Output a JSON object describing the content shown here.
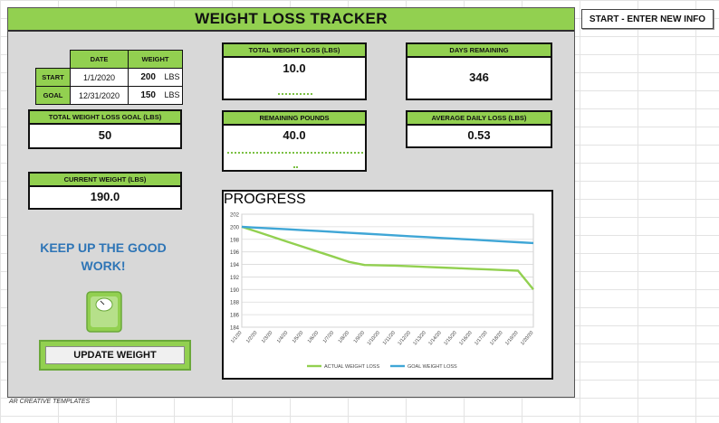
{
  "header": {
    "title": "WEIGHT LOSS TRACKER"
  },
  "start_button": {
    "label": "START - ENTER NEW INFO"
  },
  "summary_table": {
    "col_date": "DATE",
    "col_weight": "WEIGHT",
    "rows": [
      {
        "label": "START",
        "date": "1/1/2020",
        "weight": "200",
        "unit": "LBS"
      },
      {
        "label": "GOAL",
        "date": "12/31/2020",
        "weight": "150",
        "unit": "LBS"
      }
    ]
  },
  "cards": {
    "total_loss": {
      "label": "TOTAL WEIGHT LOSS (LBS)",
      "value": "10.0"
    },
    "days_remaining": {
      "label": "DAYS REMAINING",
      "value": "346"
    },
    "goal_loss": {
      "label": "TOTAL WEIGHT LOSS GOAL (LBS)",
      "value": "50"
    },
    "remaining_pounds": {
      "label": "REMAINING POUNDS",
      "value": "40.0"
    },
    "avg_daily": {
      "label": "AVERAGE DAILY LOSS (LBS)",
      "value": "0.53"
    },
    "current_weight": {
      "label": "CURRENT WEIGHT (LBS)",
      "value": "190.0"
    }
  },
  "motivation": {
    "text": "KEEP UP THE GOOD WORK!"
  },
  "update_button": {
    "label": "UPDATE WEIGHT"
  },
  "footer": {
    "text": "AR CREATIVE TEMPLATES"
  },
  "icons": {
    "scale": "scale-icon"
  },
  "colors": {
    "accent_green": "#92d050",
    "actual_line": "#92d050",
    "goal_line": "#3fa6d6",
    "motivation_blue": "#2e75b6"
  },
  "chart_data": {
    "type": "line",
    "title": "PROGRESS",
    "x": [
      "1/1/20",
      "1/2/20",
      "1/3/20",
      "1/4/20",
      "1/5/20",
      "1/6/20",
      "1/7/20",
      "1/8/20",
      "1/9/20",
      "1/10/20",
      "1/11/20",
      "1/12/20",
      "1/13/20",
      "1/14/20",
      "1/15/20",
      "1/16/20",
      "1/17/20",
      "1/18/20",
      "1/19/20",
      "1/20/20"
    ],
    "ylim": [
      184,
      202
    ],
    "yticks": [
      184,
      186,
      188,
      190,
      192,
      194,
      196,
      198,
      200,
      202
    ],
    "series": [
      {
        "name": "ACTUAL WEIGHT LOSS",
        "color": "#92d050",
        "values": [
          200,
          199.2,
          198.4,
          197.6,
          196.8,
          196.0,
          195.2,
          194.4,
          193.9,
          193.85,
          193.8,
          193.7,
          193.6,
          193.5,
          193.4,
          193.3,
          193.2,
          193.1,
          193.0,
          190.0
        ]
      },
      {
        "name": "GOAL WEIGHT LOSS",
        "color": "#3fa6d6",
        "values": [
          200,
          199.86,
          199.73,
          199.59,
          199.45,
          199.32,
          199.18,
          199.04,
          198.9,
          198.77,
          198.63,
          198.49,
          198.36,
          198.22,
          198.08,
          197.95,
          197.81,
          197.67,
          197.53,
          197.4
        ]
      }
    ],
    "grid": true,
    "legend": "bottom"
  }
}
